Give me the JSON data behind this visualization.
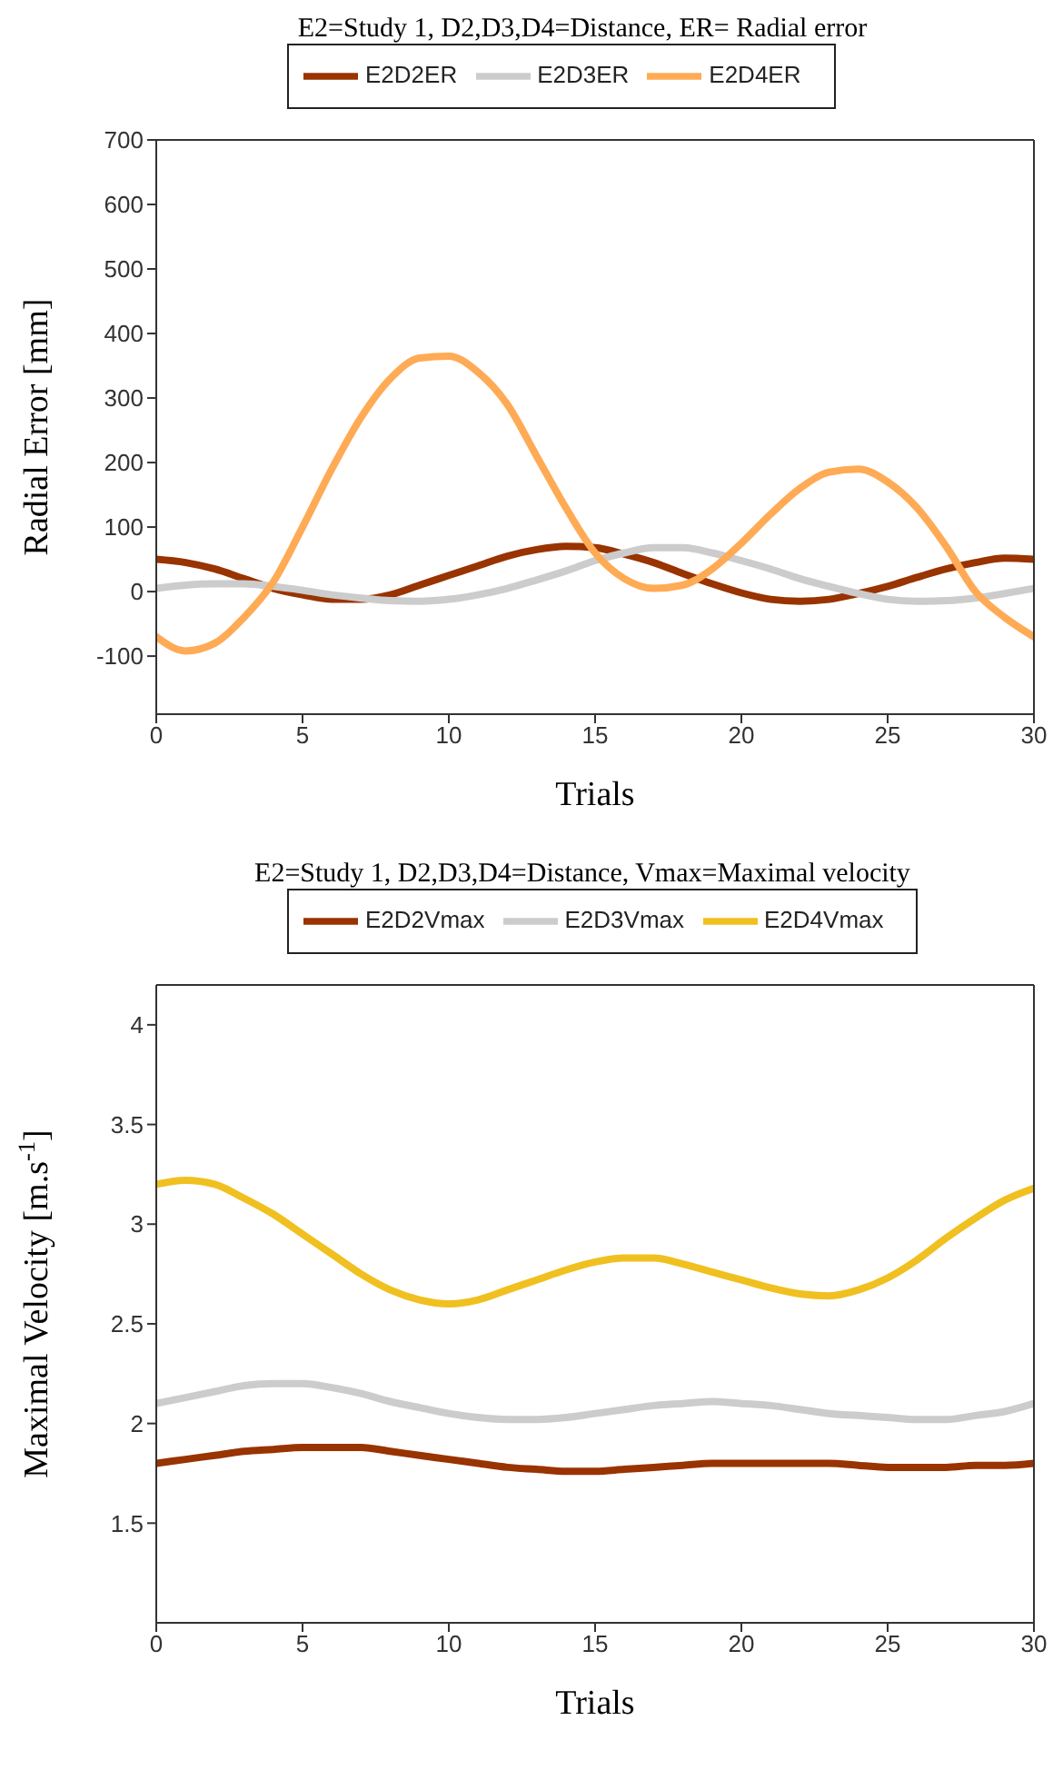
{
  "chart_data": [
    {
      "type": "line",
      "title": "E2=Study 1, D2,D3,D4=Distance, ER= Radial error",
      "xlabel": "Trials",
      "ylabel": "Radial Error [mm]",
      "x": [
        0,
        1,
        2,
        3,
        4,
        5,
        6,
        7,
        8,
        9,
        10,
        11,
        12,
        13,
        14,
        15,
        16,
        17,
        18,
        19,
        20,
        21,
        22,
        23,
        24,
        25,
        26,
        27,
        28,
        29,
        30
      ],
      "xlim": [
        0,
        30
      ],
      "xticks": [
        0,
        5,
        10,
        15,
        20,
        25,
        30
      ],
      "ylim": [
        -190,
        700
      ],
      "yticks": [
        -100,
        0,
        100,
        200,
        300,
        400,
        500,
        600,
        700
      ],
      "grid": false,
      "legend": "top",
      "marker": "none",
      "series": [
        {
          "name": "E2D2ER",
          "color": "#993300",
          "values": [
            50,
            45,
            35,
            20,
            5,
            -5,
            -12,
            -12,
            -5,
            10,
            25,
            40,
            55,
            65,
            70,
            68,
            58,
            45,
            28,
            12,
            -2,
            -12,
            -15,
            -12,
            -3,
            8,
            22,
            35,
            45,
            52,
            50
          ]
        },
        {
          "name": "E2D3ER",
          "color": "#cccccc",
          "values": [
            5,
            10,
            12,
            12,
            8,
            2,
            -5,
            -10,
            -14,
            -15,
            -12,
            -5,
            5,
            18,
            32,
            48,
            60,
            68,
            68,
            60,
            48,
            35,
            20,
            8,
            -3,
            -12,
            -15,
            -14,
            -10,
            -3,
            5
          ]
        },
        {
          "name": "E2D4ER",
          "color": "#ffaa55",
          "values": [
            -70,
            -92,
            -80,
            -40,
            15,
            100,
            190,
            270,
            330,
            362,
            365,
            340,
            290,
            210,
            130,
            60,
            20,
            5,
            10,
            35,
            75,
            120,
            160,
            185,
            190,
            170,
            130,
            70,
            0,
            -40,
            -70
          ]
        }
      ]
    },
    {
      "type": "line",
      "title": "E2=Study 1, D2,D3,D4=Distance, Vmax=Maximal velocity",
      "xlabel": "Trials",
      "ylabel": "Maximal Velocity [m.s$^{-1}$]",
      "x": [
        0,
        1,
        2,
        3,
        4,
        5,
        6,
        7,
        8,
        9,
        10,
        11,
        12,
        13,
        14,
        15,
        16,
        17,
        18,
        19,
        20,
        21,
        22,
        23,
        24,
        25,
        26,
        27,
        28,
        29,
        30
      ],
      "xlim": [
        0,
        30
      ],
      "xticks": [
        0,
        5,
        10,
        15,
        20,
        25,
        30
      ],
      "ylim": [
        1,
        4.2
      ],
      "yticks": [
        1.5,
        2,
        2.5,
        3,
        3.5,
        4
      ],
      "grid": false,
      "legend": "top",
      "marker": "none",
      "series": [
        {
          "name": "E2D2Vmax",
          "color": "#993300",
          "values": [
            1.8,
            1.82,
            1.84,
            1.86,
            1.87,
            1.88,
            1.88,
            1.88,
            1.86,
            1.84,
            1.82,
            1.8,
            1.78,
            1.77,
            1.76,
            1.76,
            1.77,
            1.78,
            1.79,
            1.8,
            1.8,
            1.8,
            1.8,
            1.8,
            1.79,
            1.78,
            1.78,
            1.78,
            1.79,
            1.79,
            1.8
          ]
        },
        {
          "name": "E2D3Vmax",
          "color": "#cccccc",
          "values": [
            2.1,
            2.13,
            2.16,
            2.19,
            2.2,
            2.2,
            2.18,
            2.15,
            2.11,
            2.08,
            2.05,
            2.03,
            2.02,
            2.02,
            2.03,
            2.05,
            2.07,
            2.09,
            2.1,
            2.11,
            2.1,
            2.09,
            2.07,
            2.05,
            2.04,
            2.03,
            2.02,
            2.02,
            2.04,
            2.06,
            2.1
          ]
        },
        {
          "name": "E2D4Vmax",
          "color": "#f0c020",
          "values": [
            3.2,
            3.22,
            3.2,
            3.13,
            3.05,
            2.95,
            2.85,
            2.75,
            2.67,
            2.62,
            2.6,
            2.62,
            2.67,
            2.72,
            2.77,
            2.81,
            2.83,
            2.83,
            2.8,
            2.76,
            2.72,
            2.68,
            2.65,
            2.64,
            2.67,
            2.73,
            2.82,
            2.93,
            3.03,
            3.12,
            3.18
          ]
        }
      ]
    }
  ]
}
